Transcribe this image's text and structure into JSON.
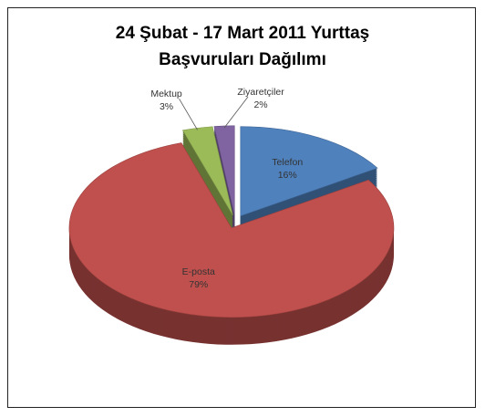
{
  "chart_data": {
    "type": "pie",
    "title": "24 Şubat - 17 Mart 2011 Yurttaş Başvuruları Dağılımı",
    "categories": [
      "Telefon",
      "E-posta",
      "Mektup",
      "Ziyaretçiler"
    ],
    "values": [
      16,
      79,
      3,
      2
    ],
    "value_labels": [
      "16%",
      "79%",
      "3%",
      "2%"
    ],
    "colors": [
      "#4f81bd",
      "#c0504d",
      "#9bbb59",
      "#8064a2"
    ]
  }
}
